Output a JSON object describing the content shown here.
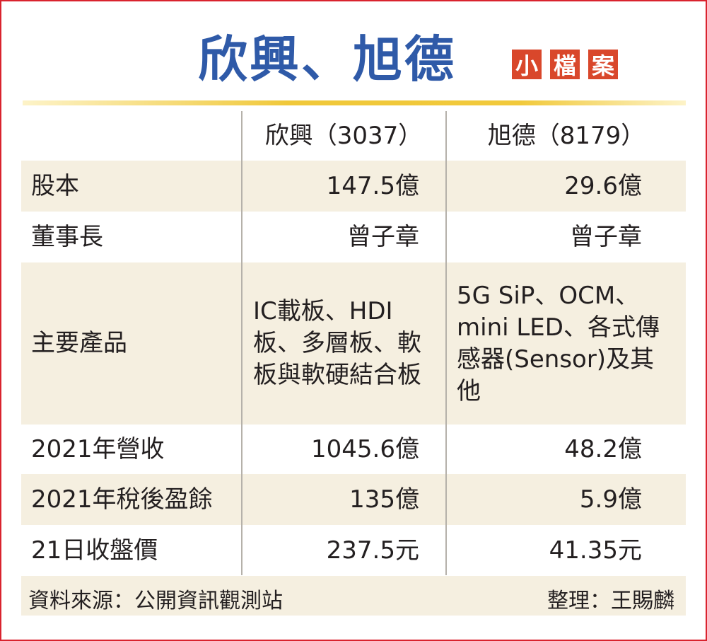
{
  "title": "欣興、旭德",
  "badge": [
    "小",
    "檔",
    "案"
  ],
  "colors": {
    "border": "#d9232e",
    "title": "#2f5aa8",
    "badge": "#d9472b",
    "rule": "#f0c83a",
    "shade": "#f5efe0"
  },
  "table": {
    "columns": [
      "欣興（3037）",
      "旭德（8179）"
    ],
    "rows": [
      {
        "label": "股本",
        "values": [
          "147.5億",
          "29.6億"
        ]
      },
      {
        "label": "董事長",
        "values": [
          "曾子章",
          "曾子章"
        ]
      },
      {
        "label": "主要產品",
        "values": [
          "IC載板、HDI板、多層板、軟板與軟硬結合板",
          "5G SiP、OCM、mini LED、各式傳感器(Sensor)及其他"
        ]
      },
      {
        "label": "2021年營收",
        "values": [
          "1045.6億",
          "48.2億"
        ]
      },
      {
        "label": "2021年稅後盈餘",
        "values": [
          "135億",
          "5.9億"
        ]
      },
      {
        "label": "21日收盤價",
        "values": [
          "237.5元",
          "41.35元"
        ]
      }
    ]
  },
  "footer": {
    "source": "資料來源：公開資訊觀測站",
    "compiled_by": "整理：王賜麟"
  }
}
